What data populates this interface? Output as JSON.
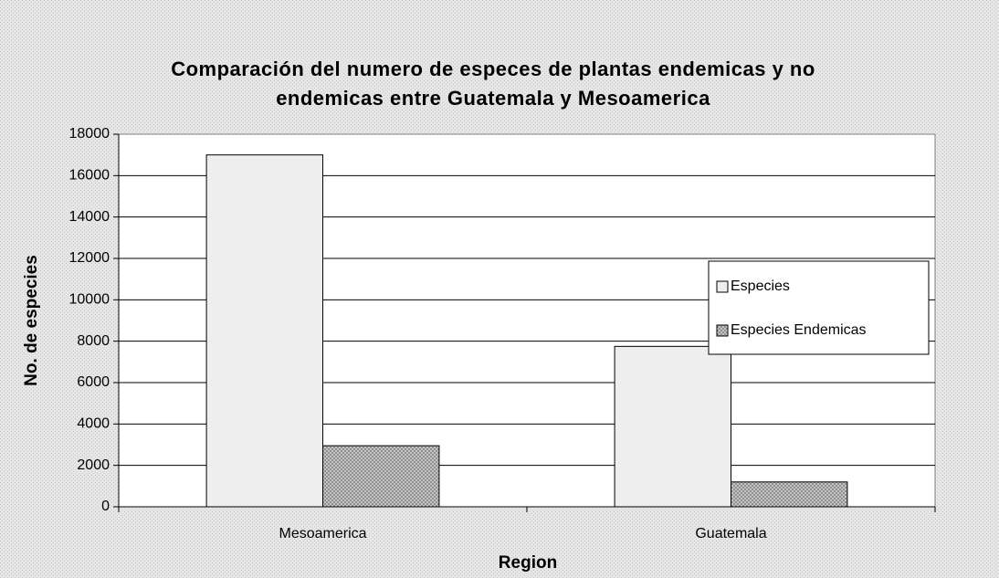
{
  "chart_data": {
    "type": "bar",
    "title": [
      "Comparación del numero de especes de plantas endemicas y no",
      "endemicas entre Guatemala y Mesoamerica"
    ],
    "x_label": "Region",
    "y_label": "No. de especies",
    "categories": [
      "Mesoamerica",
      "Guatemala"
    ],
    "series": [
      {
        "name": "Especies",
        "color": "#eeeeee",
        "values": [
          17000,
          7750
        ]
      },
      {
        "name": "Especies Endemicas",
        "color": "#8a8a8a",
        "values": [
          2950,
          1200
        ]
      }
    ],
    "ylim": [
      0,
      18000
    ],
    "yticks": [
      0,
      2000,
      4000,
      6000,
      8000,
      10000,
      12000,
      14000,
      16000,
      18000
    ],
    "grid": true,
    "legend": "right"
  }
}
